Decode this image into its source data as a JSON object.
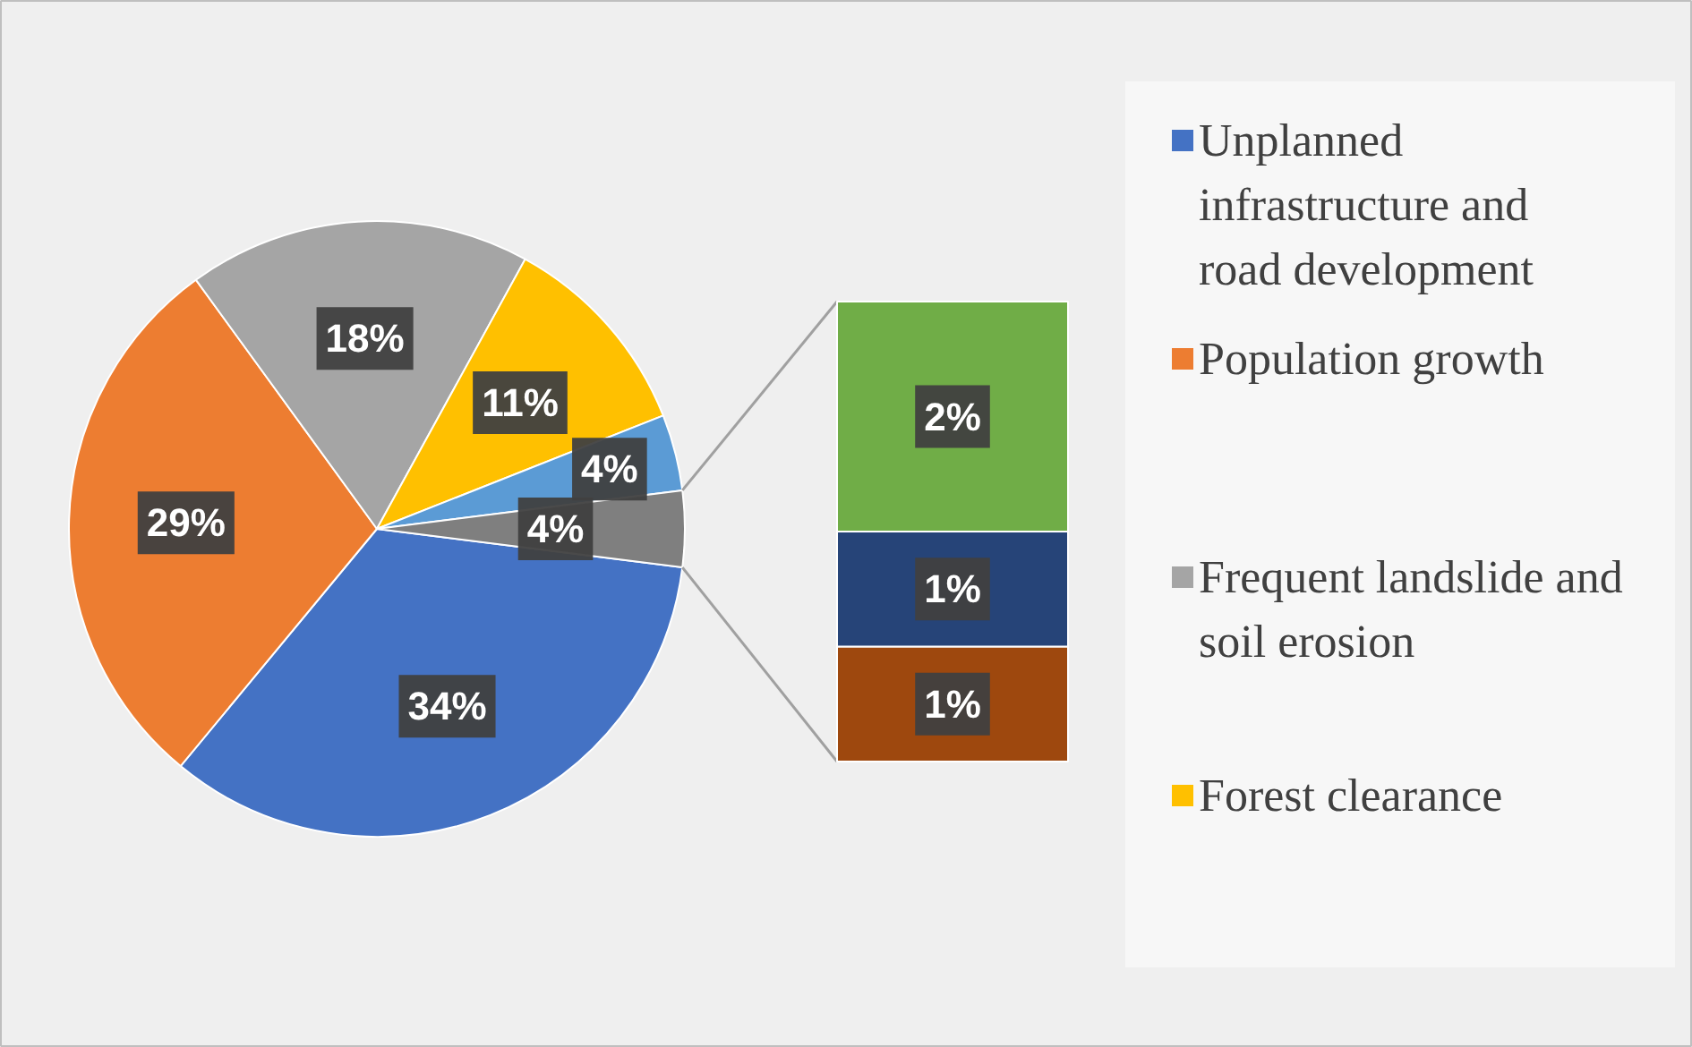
{
  "chart_data": [
    {
      "type": "pie",
      "categories": [
        "Unplanned infrastructure and road development",
        "Population growth",
        "Frequent landslide and soil erosion",
        "Forest clearance",
        null,
        null
      ],
      "values": [
        34,
        29,
        18,
        11,
        4,
        4
      ],
      "colors": [
        "#4472c4",
        "#ed7d31",
        "#a5a5a5",
        "#ffc000",
        "#5b9bd5",
        "#7f7f7f"
      ],
      "value_labels": [
        "34%",
        "29%",
        "18%",
        "11%",
        "4%",
        "4%"
      ],
      "legend": "right"
    },
    {
      "type": "bar",
      "stacked": true,
      "categories": [
        null
      ],
      "series": [
        {
          "color": "#9e480e",
          "values": [
            1
          ],
          "value_labels": [
            "1%"
          ]
        },
        {
          "color": "#264478",
          "values": [
            1
          ],
          "value_labels": [
            "1%"
          ]
        },
        {
          "color": "#70ad47",
          "values": [
            2
          ],
          "value_labels": [
            "2%"
          ]
        }
      ]
    }
  ]
}
